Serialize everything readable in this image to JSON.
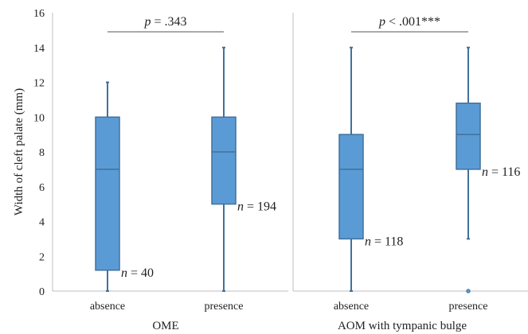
{
  "chart_data": {
    "type": "box",
    "title": "",
    "ylabel": "Width of cleft palate (mm)",
    "ylim": [
      0,
      16
    ],
    "yticks": [
      0,
      2,
      4,
      6,
      8,
      10,
      12,
      14,
      16
    ],
    "grid": false,
    "colors": {
      "box_fill": "#5b9bd5",
      "box_stroke": "#41719c",
      "axis": "#bfbfbf",
      "text": "#222222"
    },
    "panels": [
      {
        "group_label": "OME",
        "pvalue": {
          "p": "p",
          "rest": " = .343"
        },
        "boxes": [
          {
            "category": "absence",
            "min": 0,
            "q1": 1.2,
            "median": 7,
            "q3": 10,
            "max": 12,
            "outliers": [],
            "n": {
              "n": "n",
              "rest": " = 40"
            }
          },
          {
            "category": "presence",
            "min": 0,
            "q1": 5,
            "median": 8,
            "q3": 10,
            "max": 14,
            "outliers": [],
            "n": {
              "n": "n",
              "rest": " = 194"
            }
          }
        ]
      },
      {
        "group_label": "AOM with tympanic bulge",
        "pvalue": {
          "p": "p",
          "rest": " < .001***"
        },
        "boxes": [
          {
            "category": "absence",
            "min": 0,
            "q1": 3,
            "median": 7,
            "q3": 9,
            "max": 14,
            "outliers": [],
            "n": {
              "n": "n",
              "rest": " = 118"
            }
          },
          {
            "category": "presence",
            "min": 3,
            "q1": 7,
            "median": 9,
            "q3": 10.8,
            "max": 14,
            "outliers": [
              0
            ],
            "n": {
              "n": "n",
              "rest": " = 116"
            }
          }
        ]
      }
    ]
  }
}
